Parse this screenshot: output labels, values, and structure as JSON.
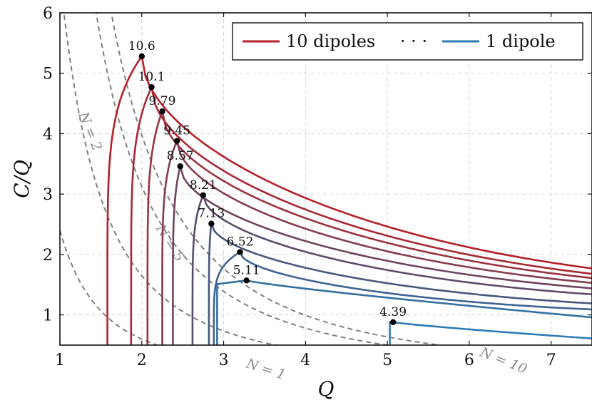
{
  "chart_data": {
    "type": "line",
    "xlabel": "Q",
    "ylabel": "C/Q",
    "xlim": [
      1,
      7.5
    ],
    "ylim": [
      0.5,
      6
    ],
    "xticks": [
      "1",
      "2",
      "3",
      "4",
      "5",
      "6",
      "7"
    ],
    "yticks": [
      "1",
      "2",
      "3",
      "4",
      "5",
      "6"
    ],
    "grid": true,
    "legend": {
      "position": "top-right",
      "first": "10 dipoles",
      "ellipsis": "· · ·",
      "last": "1 dipole",
      "first_color": "#b41f28",
      "last_color": "#2e7bb5"
    },
    "series": [
      {
        "qmin": 1.58,
        "peak": [
          2.0,
          5.28
        ],
        "start_y": 0.5,
        "color": "#b41f28",
        "label": "10.6"
      },
      {
        "qmin": 1.87,
        "peak": [
          2.12,
          4.77
        ],
        "start_y": 0.5,
        "color": "#a72833",
        "label": "10.1"
      },
      {
        "qmin": 2.07,
        "peak": [
          2.25,
          4.37
        ],
        "start_y": 0.5,
        "color": "#9a3240",
        "label": "9.79"
      },
      {
        "qmin": 2.25,
        "peak": [
          2.43,
          3.88
        ],
        "start_y": 0.5,
        "color": "#863c4e",
        "label": "9.45"
      },
      {
        "qmin": 2.38,
        "peak": [
          2.47,
          3.46
        ],
        "start_y": 0.5,
        "color": "#6f445d",
        "label": "8.57"
      },
      {
        "qmin": 2.62,
        "peak": [
          2.75,
          2.98
        ],
        "start_y": 0.5,
        "color": "#5c4c6b",
        "label": "8.21"
      },
      {
        "qmin": 2.82,
        "peak": [
          2.85,
          2.51
        ],
        "start_y": 0.5,
        "color": "#4a567c",
        "label": "7.13"
      },
      {
        "qmin": 2.88,
        "peak": [
          3.2,
          2.04
        ],
        "start_y": 0.5,
        "color": "#3e6391",
        "label": "6.52"
      },
      {
        "qmin": 2.92,
        "peak": [
          3.28,
          1.57
        ],
        "start_y": 0.5,
        "color": "#33709f",
        "label": "5.11"
      },
      {
        "qmin": 5.03,
        "peak": [
          5.07,
          0.88
        ],
        "start_y": 0.5,
        "color": "#2e7bb5",
        "label": "4.39"
      }
    ],
    "end_values_at_x_7_5": [
      1.77,
      1.68,
      1.61,
      1.53,
      1.44,
      1.34,
      1.19,
      1.09,
      0.96,
      0.61
    ],
    "reference_curves": [
      {
        "label": "N = 1",
        "k": 2.4,
        "color": "#808080"
      },
      {
        "label": "N = 2",
        "k": 6.6,
        "color": "#808080"
      },
      {
        "label": "N = 5",
        "k": 12.5,
        "color": "#808080"
      },
      {
        "label": "N = 10",
        "k": 15.9,
        "color": "#808080"
      }
    ]
  }
}
